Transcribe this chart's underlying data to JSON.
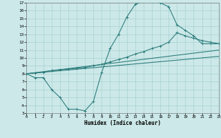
{
  "title": "",
  "xlabel": "Humidex (Indice chaleur)",
  "xlim": [
    0,
    23
  ],
  "ylim": [
    3,
    17
  ],
  "yticks": [
    3,
    4,
    5,
    6,
    7,
    8,
    9,
    10,
    11,
    12,
    13,
    14,
    15,
    16,
    17
  ],
  "xticks": [
    0,
    1,
    2,
    3,
    4,
    5,
    6,
    7,
    8,
    9,
    10,
    11,
    12,
    13,
    14,
    15,
    16,
    17,
    18,
    19,
    20,
    21,
    22,
    23
  ],
  "bg_color": "#cce8e8",
  "line_color": "#2e7d7d",
  "line1_x": [
    0,
    1,
    2,
    3,
    4,
    5,
    6,
    7,
    8,
    9,
    10,
    11,
    12,
    13,
    14,
    15,
    16,
    17,
    18,
    19,
    20,
    21,
    22,
    23
  ],
  "line1_y": [
    8,
    7.5,
    7.5,
    6.0,
    5.0,
    3.5,
    3.5,
    3.3,
    4.5,
    8.2,
    11.2,
    13.0,
    15.2,
    16.8,
    17.2,
    17.2,
    17.0,
    16.5,
    14.2,
    13.5,
    12.8,
    11.8,
    11.8,
    11.8
  ],
  "line2_x": [
    0,
    1,
    2,
    3,
    4,
    5,
    6,
    7,
    8,
    9,
    10,
    11,
    12,
    13,
    14,
    15,
    16,
    17,
    18,
    19,
    20,
    21,
    22,
    23
  ],
  "line2_y": [
    8.0,
    8.1,
    8.2,
    8.4,
    8.5,
    8.6,
    8.7,
    8.8,
    9.0,
    9.2,
    9.5,
    9.8,
    10.1,
    10.5,
    10.8,
    11.2,
    11.5,
    12.0,
    13.2,
    12.8,
    12.5,
    12.2,
    12.0,
    11.8
  ],
  "line3_x": [
    0,
    23
  ],
  "line3_y": [
    8.0,
    11.0
  ],
  "line4_x": [
    0,
    23
  ],
  "line4_y": [
    8.0,
    10.2
  ]
}
